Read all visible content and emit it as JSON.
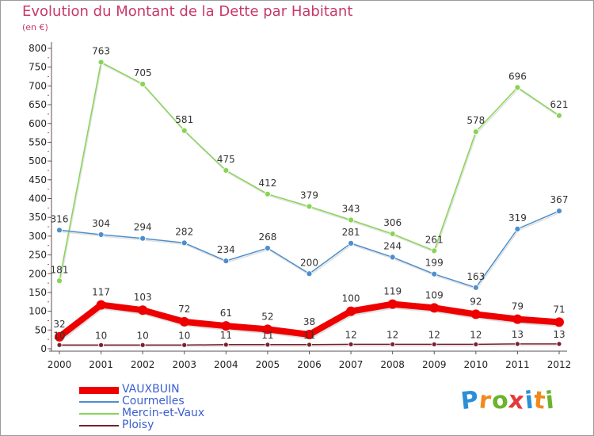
{
  "chart_data": {
    "type": "line",
    "title": "Evolution du Montant de la Dette par Habitant",
    "subtitle": "(en €)",
    "x": [
      "2000",
      "2001",
      "2002",
      "2003",
      "2004",
      "2005",
      "2006",
      "2007",
      "2008",
      "2009",
      "2010",
      "2011",
      "2012"
    ],
    "ylim": [
      0,
      800
    ],
    "yticks": [
      0,
      50,
      100,
      150,
      200,
      250,
      300,
      350,
      400,
      450,
      500,
      550,
      600,
      650,
      700,
      750,
      800
    ],
    "grid": false,
    "legend_position": "bottom-left",
    "series": [
      {
        "name": "VAUXBUIN",
        "color": "#ee0000",
        "values": [
          32,
          117,
          103,
          72,
          61,
          52,
          38,
          100,
          119,
          109,
          92,
          79,
          71
        ]
      },
      {
        "name": "Courmelles",
        "color": "#4d8fcc",
        "values": [
          316,
          304,
          294,
          282,
          234,
          268,
          200,
          281,
          244,
          199,
          163,
          319,
          367
        ]
      },
      {
        "name": "Mercin-et-Vaux",
        "color": "#88d455",
        "values": [
          181,
          763,
          705,
          581,
          475,
          412,
          379,
          343,
          306,
          261,
          578,
          696,
          621
        ]
      },
      {
        "name": "Ploisy",
        "color": "#7a1f2a",
        "values": [
          10,
          10,
          10,
          10,
          11,
          11,
          11,
          12,
          12,
          12,
          12,
          13,
          13
        ]
      }
    ]
  },
  "brand": {
    "letters": [
      "P",
      "r",
      "o",
      "x",
      "i",
      "t",
      "i"
    ],
    "colors": [
      "#2b8fd8",
      "#f08a1c",
      "#6ab42c",
      "#e23a3a",
      "#2b8fd8",
      "#f08a1c",
      "#6ab42c"
    ]
  }
}
